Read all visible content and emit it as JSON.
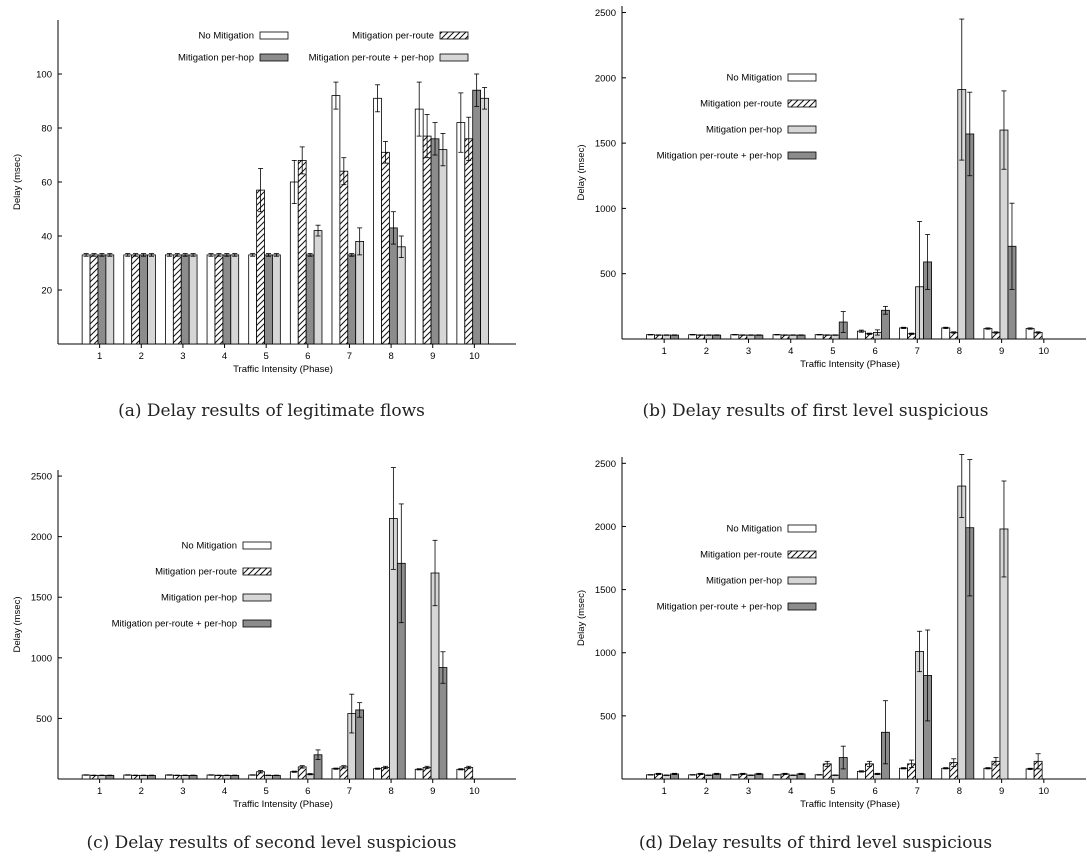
{
  "chart_data": [
    {
      "type": "bar",
      "caption": "(a) Delay results of legitimate flows",
      "xlabel": "Traffic Intensity (Phase)",
      "ylabel": "Delay (msec)",
      "ylim": [
        0,
        120
      ],
      "yticks": [
        20,
        40,
        60,
        80,
        100
      ],
      "legend": "top-two-rows",
      "categories": [
        "1",
        "2",
        "3",
        "4",
        "5",
        "6",
        "7",
        "8",
        "9",
        "10"
      ],
      "series": [
        {
          "name": "No Mitigation",
          "pattern": "white",
          "values": [
            33,
            33,
            33,
            33,
            33,
            60,
            92,
            91,
            87,
            82
          ],
          "errors": [
            0.5,
            0.5,
            0.5,
            0.5,
            0.5,
            8,
            5,
            5,
            10,
            11
          ]
        },
        {
          "name": "Mitigation per-route",
          "pattern": "hatch",
          "values": [
            33,
            33,
            33,
            33,
            57,
            68,
            64,
            71,
            77,
            76
          ],
          "errors": [
            0.5,
            0.5,
            0.5,
            0.5,
            8,
            5,
            5,
            4,
            8,
            8
          ]
        },
        {
          "name": "Mitigation per-hop",
          "pattern": "dark",
          "values": [
            33,
            33,
            33,
            33,
            33,
            33,
            33,
            43,
            76,
            94
          ],
          "errors": [
            0.5,
            0.5,
            0.5,
            0.5,
            0.5,
            0.5,
            0.5,
            6,
            6,
            6
          ]
        },
        {
          "name": "Mitigation per-route + per-hop",
          "pattern": "light",
          "values": [
            33,
            33,
            33,
            33,
            33,
            42,
            38,
            36,
            72,
            91
          ],
          "errors": [
            0.5,
            0.5,
            0.5,
            0.5,
            0.5,
            2,
            5,
            4,
            6,
            4
          ]
        }
      ]
    },
    {
      "type": "bar",
      "caption": "(b) Delay results of first level suspicious",
      "xlabel": "Traffic Intensity (Phase)",
      "ylabel": "Delay (msec)",
      "ylim": [
        0,
        2550
      ],
      "yticks": [
        500,
        1000,
        1500,
        2000,
        2500
      ],
      "legend": "upper-left-stacked",
      "categories": [
        "1",
        "2",
        "3",
        "4",
        "5",
        "6",
        "7",
        "8",
        "9",
        "10"
      ],
      "series": [
        {
          "name": "No Mitigation",
          "pattern": "white",
          "values": [
            33,
            33,
            33,
            33,
            33,
            60,
            85,
            85,
            80,
            80
          ],
          "errors": [
            2,
            2,
            2,
            2,
            2,
            8,
            5,
            5,
            5,
            5
          ]
        },
        {
          "name": "Mitigation per-route",
          "pattern": "hatch",
          "values": [
            30,
            30,
            30,
            30,
            30,
            40,
            40,
            50,
            50,
            50
          ],
          "errors": [
            2,
            2,
            2,
            2,
            2,
            5,
            5,
            5,
            5,
            5
          ]
        },
        {
          "name": "Mitigation per-hop",
          "pattern": "light",
          "values": [
            30,
            30,
            30,
            30,
            30,
            50,
            400,
            1910,
            1600,
            0
          ],
          "errors": [
            2,
            2,
            2,
            2,
            2,
            20,
            500,
            540,
            300,
            0
          ]
        },
        {
          "name": "Mitigation per-route + per-hop",
          "pattern": "dark",
          "values": [
            30,
            30,
            30,
            30,
            130,
            220,
            590,
            1570,
            710,
            0
          ],
          "errors": [
            2,
            2,
            2,
            2,
            80,
            30,
            210,
            320,
            330,
            0
          ]
        }
      ]
    },
    {
      "type": "bar",
      "caption": "(c) Delay results of second level suspicious",
      "xlabel": "Traffic Intensity (Phase)",
      "ylabel": "Delay (msec)",
      "ylim": [
        0,
        2550
      ],
      "yticks": [
        500,
        1000,
        1500,
        2000,
        2500
      ],
      "legend": "upper-left-stacked",
      "categories": [
        "1",
        "2",
        "3",
        "4",
        "5",
        "6",
        "7",
        "8",
        "9",
        "10"
      ],
      "series": [
        {
          "name": "No Mitigation",
          "pattern": "white",
          "values": [
            33,
            33,
            33,
            33,
            33,
            60,
            85,
            85,
            80,
            80
          ],
          "errors": [
            2,
            2,
            2,
            2,
            2,
            5,
            5,
            5,
            5,
            5
          ]
        },
        {
          "name": "Mitigation per-route",
          "pattern": "hatch",
          "values": [
            30,
            30,
            30,
            30,
            60,
            100,
            100,
            95,
            95,
            95
          ],
          "errors": [
            2,
            2,
            2,
            2,
            10,
            10,
            10,
            10,
            10,
            10
          ]
        },
        {
          "name": "Mitigation per-hop",
          "pattern": "light",
          "values": [
            30,
            30,
            30,
            30,
            30,
            40,
            540,
            2150,
            1700,
            0
          ],
          "errors": [
            2,
            2,
            2,
            2,
            2,
            5,
            160,
            420,
            270,
            0
          ]
        },
        {
          "name": "Mitigation per-route + per-hop",
          "pattern": "dark",
          "values": [
            30,
            30,
            30,
            30,
            30,
            200,
            570,
            1780,
            920,
            0
          ],
          "errors": [
            2,
            2,
            2,
            2,
            2,
            40,
            60,
            490,
            130,
            0
          ]
        }
      ]
    },
    {
      "type": "bar",
      "caption": "(d) Delay results of third level suspicious",
      "xlabel": "Traffic Intensity (Phase)",
      "ylabel": "Delay (msec)",
      "ylim": [
        0,
        2550
      ],
      "yticks": [
        500,
        1000,
        1500,
        2000,
        2500
      ],
      "legend": "upper-left-stacked",
      "categories": [
        "1",
        "2",
        "3",
        "4",
        "5",
        "6",
        "7",
        "8",
        "9",
        "10"
      ],
      "series": [
        {
          "name": "No Mitigation",
          "pattern": "white",
          "values": [
            33,
            33,
            33,
            33,
            33,
            60,
            85,
            85,
            85,
            80
          ],
          "errors": [
            2,
            2,
            2,
            2,
            2,
            5,
            5,
            5,
            5,
            5
          ]
        },
        {
          "name": "Mitigation per-route",
          "pattern": "hatch",
          "values": [
            40,
            40,
            40,
            40,
            120,
            120,
            120,
            130,
            140,
            140
          ],
          "errors": [
            5,
            5,
            5,
            5,
            20,
            20,
            30,
            30,
            30,
            60
          ]
        },
        {
          "name": "Mitigation per-hop",
          "pattern": "light",
          "values": [
            30,
            30,
            30,
            30,
            30,
            40,
            1010,
            2320,
            1980,
            0
          ],
          "errors": [
            2,
            2,
            2,
            2,
            2,
            5,
            160,
            250,
            380,
            0
          ]
        },
        {
          "name": "Mitigation per-route + per-hop",
          "pattern": "dark",
          "values": [
            40,
            40,
            40,
            40,
            170,
            370,
            820,
            1990,
            0,
            0
          ],
          "errors": [
            5,
            5,
            5,
            5,
            90,
            250,
            360,
            540,
            0,
            0
          ]
        }
      ]
    }
  ]
}
